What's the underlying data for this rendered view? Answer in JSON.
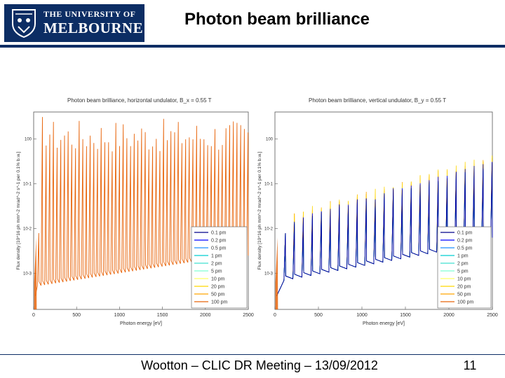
{
  "header": {
    "logo_line1": "THE UNIVERSITY OF",
    "logo_line2": "MELBOURNE",
    "title": "Photon beam brilliance"
  },
  "footer": {
    "text": "Wootton – CLIC DR Meeting – 13/09/2012",
    "page_number": "11"
  },
  "colors": {
    "brand_navy": "#0c2d64",
    "series": [
      "#00008b",
      "#0000ff",
      "#1e90ff",
      "#00ced1",
      "#40e0d0",
      "#7fffd4",
      "#ffff66",
      "#ffd700",
      "#ffa500",
      "#e8640a"
    ]
  },
  "chart_data": [
    {
      "type": "line",
      "title": "Photon beam brilliance, horizontal undulator, B_x = 0.55 T",
      "xlabel": "Photon energy [eV]",
      "ylabel": "Flux density [10^16 ph mm^-2 mrad^-2 s^-1 per 0.1% b.w.]",
      "xlim": [
        0,
        2500
      ],
      "xticks": [
        "0",
        "500",
        "1000",
        "1500",
        "2000",
        "2500"
      ],
      "yscale": "log",
      "yticks": [
        "10^-3",
        "10^-2",
        "10^-1",
        "10^0"
      ],
      "legend": [
        "0.1 pm",
        "0.2 pm",
        "0.5 pm",
        "1 pm",
        "2 pm",
        "5 pm",
        "10 pm",
        "20 pm",
        "50 pm",
        "100 pm"
      ],
      "legend_position": "bottom-right"
    },
    {
      "type": "line",
      "title": "Photon beam brilliance, vertical undulator, B_y = 0.55 T",
      "xlabel": "Photon energy [eV]",
      "ylabel": "Flux density [10^16 ph mm^-2 mrad^-2 s^-1 per 0.1% b.w.]",
      "xlim": [
        0,
        2500
      ],
      "xticks": [
        "0",
        "500",
        "1000",
        "1500",
        "2000",
        "2500"
      ],
      "yscale": "log",
      "yticks": [
        "10^-3",
        "10^-2",
        "10^-1",
        "10^0"
      ],
      "legend": [
        "0.1 pm",
        "0.2 pm",
        "0.5 pm",
        "1 pm",
        "2 pm",
        "5 pm",
        "10 pm",
        "20 pm",
        "50 pm",
        "100 pm"
      ],
      "legend_position": "bottom-right"
    }
  ]
}
